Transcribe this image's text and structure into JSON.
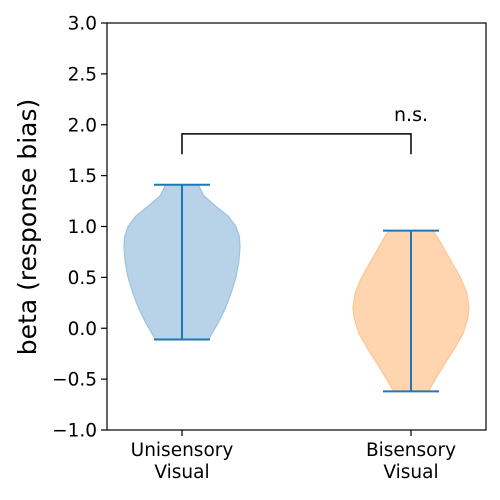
{
  "chart_data": {
    "type": "violin",
    "title": "",
    "xlabel": "",
    "ylabel": "beta (response bias)",
    "ylim": [
      -1.0,
      3.0
    ],
    "yticks": [
      -1.0,
      -0.5,
      0.0,
      0.5,
      1.0,
      1.5,
      2.0,
      2.5,
      3.0
    ],
    "ytick_labels": [
      "−1.0",
      "−0.5",
      "0.0",
      "0.5",
      "1.0",
      "1.5",
      "2.0",
      "2.5",
      "3.0"
    ],
    "grid": false,
    "categories": [
      {
        "line1": "Unisensory",
        "line2": "Visual"
      },
      {
        "line1": "Bisensory",
        "line2": "Visual"
      }
    ],
    "series": [
      {
        "category_index": 0,
        "min": -0.11,
        "max": 1.41,
        "color": "#1f77b4",
        "fill": "#b8d2e7",
        "edge": "#9cc2de",
        "profile": [
          [
            -0.11,
            0.45
          ],
          [
            -0.05,
            0.52
          ],
          [
            0.05,
            0.62
          ],
          [
            0.2,
            0.75
          ],
          [
            0.35,
            0.85
          ],
          [
            0.5,
            0.93
          ],
          [
            0.65,
            0.98
          ],
          [
            0.8,
            1.0
          ],
          [
            0.9,
            0.99
          ],
          [
            1.0,
            0.93
          ],
          [
            1.1,
            0.8
          ],
          [
            1.2,
            0.58
          ],
          [
            1.3,
            0.38
          ],
          [
            1.41,
            0.28
          ]
        ]
      },
      {
        "category_index": 1,
        "min": -0.62,
        "max": 0.96,
        "color": "#1f77b4",
        "fill": "#ffd5b0",
        "edge": "#ffc490",
        "profile": [
          [
            -0.62,
            0.3
          ],
          [
            -0.5,
            0.42
          ],
          [
            -0.35,
            0.58
          ],
          [
            -0.2,
            0.75
          ],
          [
            -0.05,
            0.9
          ],
          [
            0.1,
            0.98
          ],
          [
            0.2,
            1.0
          ],
          [
            0.35,
            0.96
          ],
          [
            0.5,
            0.85
          ],
          [
            0.65,
            0.7
          ],
          [
            0.8,
            0.55
          ],
          [
            0.9,
            0.45
          ],
          [
            0.96,
            0.38
          ]
        ]
      }
    ],
    "annotation": {
      "text": "n.s.",
      "bracket_y": 1.91,
      "bracket_drop": 0.2
    }
  }
}
